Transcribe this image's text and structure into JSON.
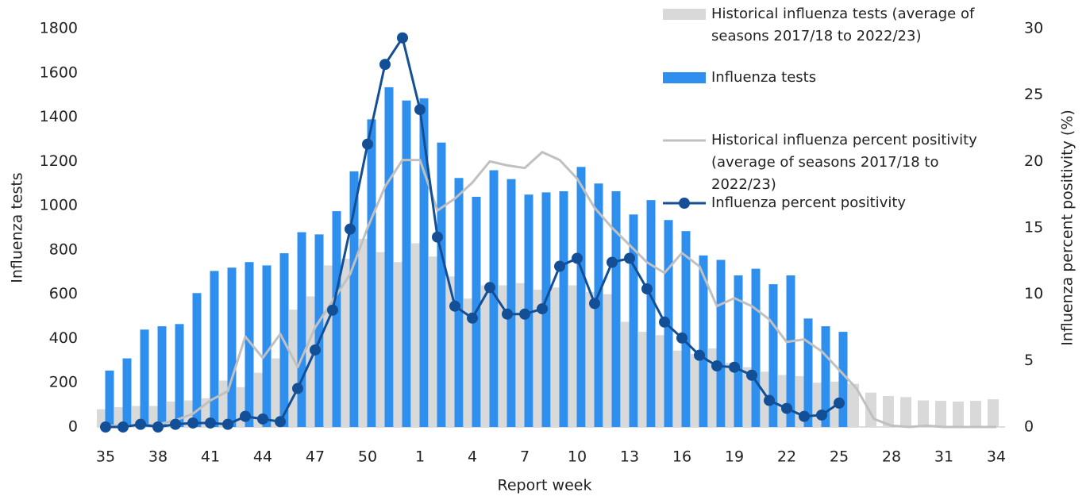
{
  "chart_data": {
    "type": "bar",
    "xlabel": "Report week",
    "ylabel": "Influenza tests",
    "y2label": "Influenza percent positivity (%)",
    "categories": [
      "35",
      null,
      null,
      "38",
      null,
      null,
      "41",
      null,
      null,
      "44",
      null,
      null,
      "47",
      null,
      null,
      "50",
      null,
      null,
      "1",
      null,
      null,
      "4",
      null,
      null,
      "7",
      null,
      null,
      "10",
      null,
      null,
      "13",
      null,
      null,
      "16",
      null,
      null,
      "19",
      null,
      null,
      "22",
      null,
      null,
      "25",
      null,
      null,
      "28",
      null,
      null,
      "31",
      null,
      null,
      "34"
    ],
    "ylim": [
      0,
      1800
    ],
    "yticks": [
      0,
      200,
      400,
      600,
      800,
      1000,
      1200,
      1400,
      1600,
      1800
    ],
    "y2lim": [
      0,
      30
    ],
    "y2ticks": [
      0,
      5,
      10,
      15,
      20,
      25,
      30
    ],
    "legend": "top right",
    "series": [
      {
        "name": "Historical influenza tests (average of seasons 2017/18 to 2022/23)",
        "type": "bar",
        "color": "#d9d9d9",
        "values": [
          80,
          90,
          95,
          95,
          115,
          120,
          130,
          210,
          180,
          245,
          310,
          530,
          590,
          730,
          760,
          850,
          790,
          745,
          830,
          770,
          680,
          580,
          640,
          640,
          650,
          620,
          630,
          640,
          610,
          600,
          475,
          430,
          415,
          345,
          330,
          355,
          290,
          270,
          250,
          235,
          230,
          200,
          205,
          195,
          155,
          140,
          135,
          120,
          118,
          115,
          118,
          125
        ]
      },
      {
        "name": "Influenza tests",
        "type": "bar",
        "color": "#2f8fef",
        "values": [
          255,
          310,
          440,
          455,
          465,
          605,
          705,
          720,
          745,
          730,
          785,
          880,
          870,
          975,
          1155,
          1390,
          1535,
          1475,
          1485,
          1285,
          1125,
          1040,
          1160,
          1120,
          1050,
          1060,
          1065,
          1175,
          1100,
          1065,
          960,
          1025,
          935,
          885,
          775,
          755,
          685,
          715,
          645,
          685,
          490,
          455,
          430,
          null,
          null,
          null,
          null,
          null,
          null,
          null,
          null,
          null
        ]
      },
      {
        "name": "Historical influenza percent positivity (average of seasons 2017/18 to 2022/23)",
        "type": "line",
        "axis": "y2",
        "color": "#c0c0c0",
        "values": [
          0.1,
          0.1,
          0.1,
          0.2,
          0.5,
          1.0,
          2.0,
          2.7,
          6.8,
          5.2,
          7.0,
          4.5,
          7.5,
          9.5,
          11.5,
          15.0,
          18.1,
          20.1,
          20.1,
          16.3,
          17.2,
          18.4,
          20.0,
          19.7,
          19.5,
          20.7,
          20.1,
          18.7,
          16.5,
          15.0,
          13.7,
          12.4,
          11.6,
          13.1,
          12.1,
          9.1,
          9.7,
          9.1,
          8.1,
          6.4,
          6.6,
          5.7,
          4.3,
          2.9,
          0.6,
          0.1,
          0.0,
          0.1,
          0.0,
          0.0,
          0.0,
          0.0
        ]
      },
      {
        "name": "Influenza percent positivity",
        "type": "line",
        "axis": "y2",
        "color": "#134f96",
        "marker": true,
        "values": [
          0,
          0,
          0.2,
          0,
          0.2,
          0.3,
          0.3,
          0.2,
          0.8,
          0.6,
          0.4,
          2.9,
          5.8,
          8.8,
          14.9,
          21.3,
          27.3,
          29.3,
          23.9,
          14.3,
          9.1,
          8.2,
          10.5,
          8.5,
          8.5,
          8.9,
          12.1,
          12.7,
          9.3,
          12.4,
          12.7,
          10.4,
          7.9,
          6.7,
          5.4,
          4.6,
          4.5,
          3.9,
          2.0,
          1.4,
          0.8,
          0.9,
          1.8,
          null,
          null,
          null,
          null,
          null,
          null,
          null,
          null,
          null
        ]
      }
    ]
  }
}
